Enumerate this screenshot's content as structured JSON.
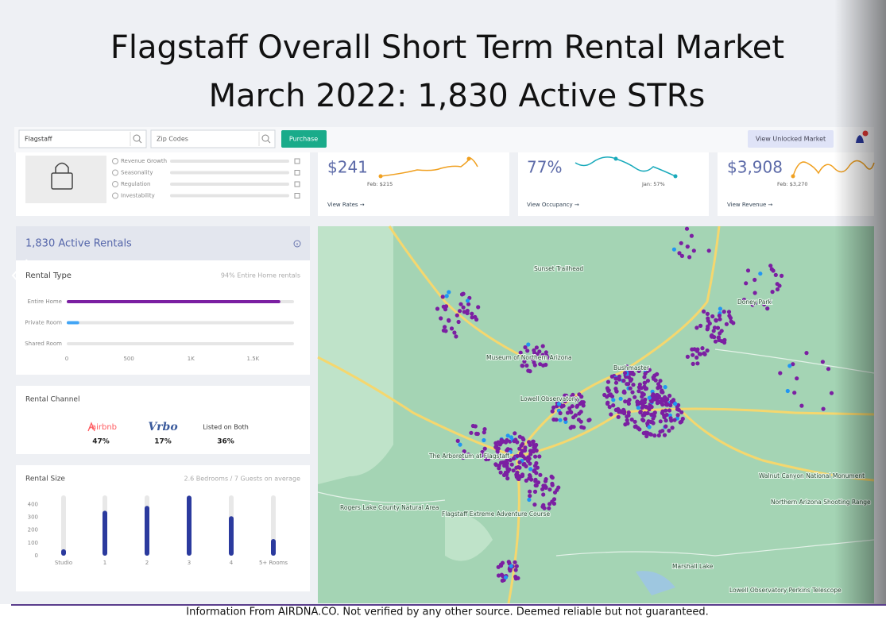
{
  "header": {
    "title_line1": "Flagstaff Overall Short Term Rental Market",
    "title_line2": "March 2022: 1,830 Active STRs"
  },
  "toolbar": {
    "market": "Flagstaff",
    "zip_codes": "Zip Codes",
    "purchase": "Purchase",
    "view_market": "View Unlocked Market"
  },
  "scores": [
    "Revenue Growth",
    "Seasonality",
    "Regulation",
    "Investability"
  ],
  "kpis": [
    {
      "value": "$241",
      "low_label": "Feb: $215",
      "link": "View Rates →"
    },
    {
      "value": "77%",
      "low_label": "Jan: 57%",
      "link": "View Occupancy →"
    },
    {
      "value": "$3,908",
      "low_label": "Feb: $3,270",
      "link": "View Revenue →"
    }
  ],
  "active_rentals": {
    "title": "1,830 Active Rentals"
  },
  "rental_type": {
    "type": "bar",
    "title": "Rental Type",
    "note": "94% Entire Home rentals",
    "categories": [
      "Entire Home",
      "Private Room",
      "Shared Room"
    ],
    "values": [
      1720,
      100,
      0
    ],
    "colors": [
      "#7b1fa2",
      "#42a5f5",
      "#b0b0b0"
    ],
    "xlim": [
      0,
      1830
    ],
    "xticks": [
      0,
      500,
      {
        "value": 1000,
        "label": "1K"
      },
      {
        "value": 1500,
        "label": "1.5K"
      }
    ]
  },
  "rental_channel": {
    "title": "Rental Channel",
    "channels": [
      {
        "name": "airbnb",
        "share": "47%"
      },
      {
        "name": "Vrbo",
        "share": "17%"
      },
      {
        "name": "Listed on Both",
        "share": "36%"
      }
    ]
  },
  "rental_size": {
    "type": "bar",
    "title": "Rental Size",
    "note": "2.6 Bedrooms / 7 Guests on average",
    "categories": [
      "Studio",
      "1",
      "2",
      "3",
      "4",
      "5+ Rooms"
    ],
    "values": [
      50,
      350,
      388,
      468,
      308,
      130
    ],
    "color": "#2b3a9e",
    "ylim": [
      0,
      470
    ],
    "yticks": [
      0,
      100,
      200,
      300,
      400
    ]
  },
  "map_labels": [
    "Sunset Trailhead",
    "Doney Park",
    "Museum of Northern Arizona",
    "Bushmaster",
    "Lowell Observatory",
    "The Arboretum at Flagstaff",
    "Rogers Lake County Natural Area",
    "Flagstaff Extreme Adventure Course",
    "Walnut Canyon National Monument",
    "Northern Arizona Shooting Range",
    "Marshall Lake",
    "Lowell Observatory Perkins Telescope"
  ],
  "footer": "Information From AIRDNA.CO.  Not verified by any other source.  Deemed reliable but not guaranteed."
}
